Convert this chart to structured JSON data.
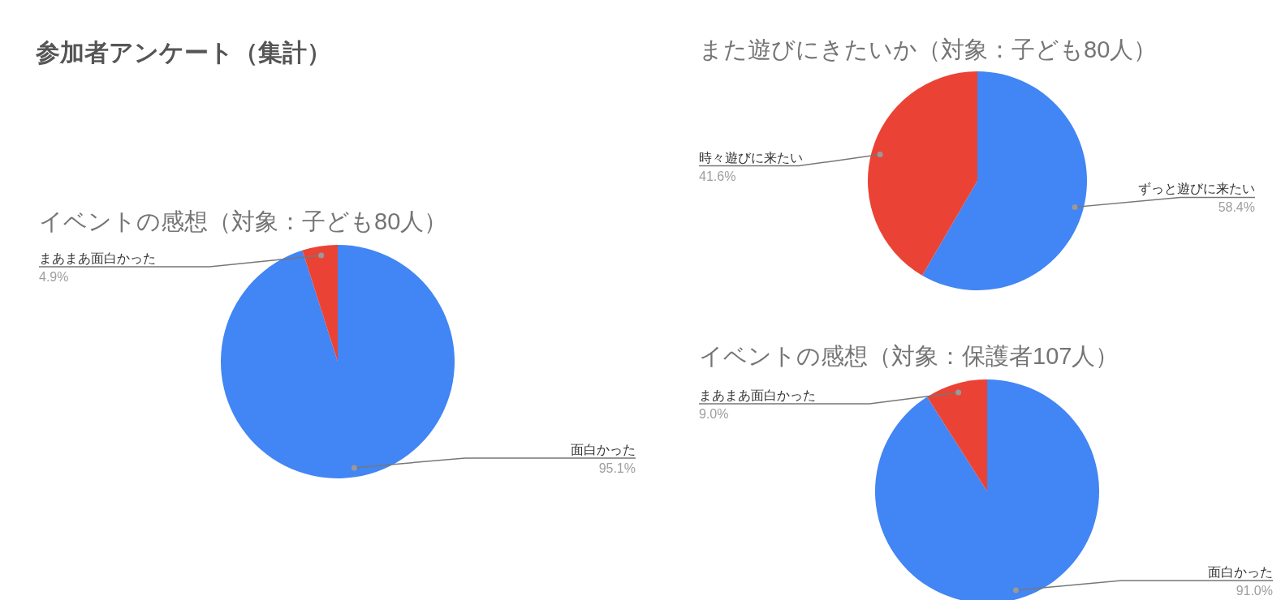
{
  "chart_data": [
    {
      "type": "other",
      "title": "参加者アンケート（集計）"
    },
    {
      "type": "pie",
      "title": "イベントの感想（対象：子ども80人）",
      "categories": [
        "面白かった",
        "まあまあ面白かった"
      ],
      "values": [
        95.1,
        4.9
      ],
      "colors": [
        "#4285f4",
        "#ea4335"
      ],
      "value_labels": [
        "95.1%",
        "4.9%"
      ]
    },
    {
      "type": "pie",
      "title": "また遊びにきたいか（対象：子ども80人）",
      "categories": [
        "ずっと遊びに来たい",
        "時々遊びに来たい"
      ],
      "values": [
        58.4,
        41.6
      ],
      "colors": [
        "#4285f4",
        "#ea4335"
      ],
      "value_labels": [
        "58.4%",
        "41.6%"
      ]
    },
    {
      "type": "pie",
      "title": "イベントの感想（対象：保護者107人）",
      "categories": [
        "面白かった",
        "まあまあ面白かった"
      ],
      "values": [
        91.0,
        9.0
      ],
      "colors": [
        "#4285f4",
        "#ea4335"
      ],
      "value_labels": [
        "91.0%",
        "9.0%"
      ]
    }
  ]
}
